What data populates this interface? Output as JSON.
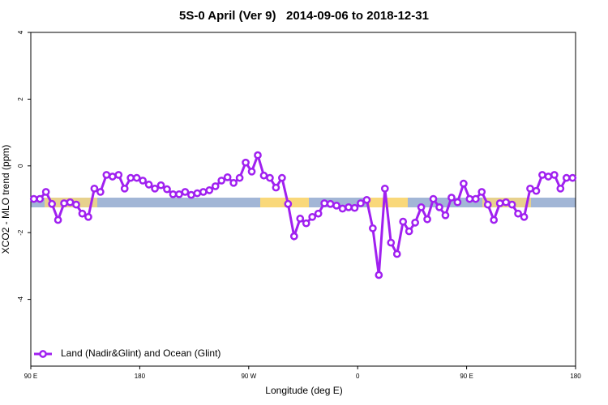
{
  "chart_data": {
    "type": "line",
    "title": "5S-0 April (Ver 9)   2014-09-06 to 2018-12-31",
    "x_label": "Longitude (deg E)",
    "y_label": "XCO2 - MLO trend (ppm)",
    "xlim": [
      90,
      540
    ],
    "xticks": [
      {
        "value": 90,
        "label": "90 E"
      },
      {
        "value": 180,
        "label": "180"
      },
      {
        "value": 270,
        "label": "90 W"
      },
      {
        "value": 360,
        "label": "0"
      },
      {
        "value": 450,
        "label": "90 E"
      },
      {
        "value": 540,
        "label": "180"
      }
    ],
    "ylim": [
      -6,
      4
    ],
    "yticks": [
      -4,
      -2,
      0,
      2,
      4
    ],
    "legend": "bottom-left",
    "x": [
      92.5,
      97.5,
      102.5,
      107.5,
      112.5,
      117.5,
      122.5,
      127.5,
      132.5,
      137.5,
      142.5,
      147.5,
      152.5,
      157.5,
      162.5,
      167.5,
      172.5,
      177.5,
      182.5,
      187.5,
      192.5,
      197.5,
      202.5,
      207.5,
      212.5,
      217.5,
      222.5,
      227.5,
      232.5,
      237.5,
      242.5,
      247.5,
      252.5,
      257.5,
      262.5,
      267.5,
      272.5,
      277.5,
      282.5,
      287.5,
      292.5,
      297.5,
      302.5,
      307.5,
      312.5,
      317.5,
      322.5,
      327.5,
      332.5,
      337.5,
      342.5,
      347.5,
      352.5,
      357.5,
      362.5,
      367.5,
      372.5,
      377.5,
      382.5,
      387.5,
      392.5,
      397.5,
      402.5,
      407.5,
      412.5,
      417.5,
      422.5,
      427.5,
      432.5,
      437.5,
      442.5,
      447.5,
      452.5,
      457.5,
      462.5,
      467.5,
      472.5,
      477.5,
      482.5,
      487.5,
      492.5,
      497.5,
      502.5,
      507.5,
      512.5,
      517.5,
      522.5,
      527.5,
      532.5,
      537.5
    ],
    "series": [
      {
        "name": "Land (Nadir&Glint) and Ocean (Glint)",
        "color": "#a020f0",
        "values": [
          -0.99,
          -0.99,
          -0.78,
          -1.14,
          -1.62,
          -1.12,
          -1.09,
          -1.16,
          -1.43,
          -1.53,
          -0.68,
          -0.78,
          -0.27,
          -0.32,
          -0.27,
          -0.68,
          -0.36,
          -0.36,
          -0.44,
          -0.56,
          -0.68,
          -0.58,
          -0.7,
          -0.85,
          -0.85,
          -0.78,
          -0.87,
          -0.82,
          -0.78,
          -0.73,
          -0.61,
          -0.44,
          -0.34,
          -0.51,
          -0.36,
          0.1,
          -0.17,
          0.32,
          -0.29,
          -0.36,
          -0.65,
          -0.36,
          -1.14,
          -2.11,
          -1.58,
          -1.72,
          -1.53,
          -1.43,
          -1.12,
          -1.14,
          -1.19,
          -1.28,
          -1.24,
          -1.26,
          -1.12,
          -1.02,
          -1.87,
          -3.27,
          -0.68,
          -2.3,
          -2.64,
          -1.67,
          -1.96,
          -1.7,
          -1.24,
          -1.6,
          -0.99,
          -1.24,
          -1.48,
          -0.95,
          -1.09,
          -0.53,
          -0.99,
          -0.99,
          -0.78,
          -1.16,
          -1.62,
          -1.12,
          -1.09,
          -1.16,
          -1.43,
          -1.53,
          -0.68,
          -0.75,
          -0.27,
          -0.32,
          -0.27,
          -0.68,
          -0.36,
          -0.36
        ]
      }
    ]
  }
}
